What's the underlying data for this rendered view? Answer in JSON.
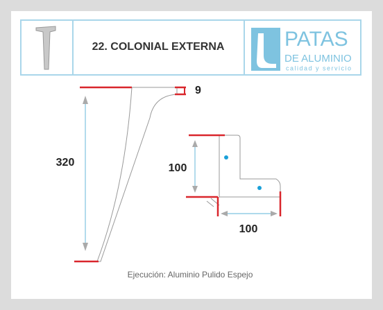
{
  "header": {
    "title": "22. COLONIAL EXTERNA",
    "logo": {
      "name": "PATAS",
      "subtitle": "DE ALUMINIO",
      "tagline": "calidad y servicio"
    }
  },
  "dimensions": {
    "top_width": 9,
    "height": 320,
    "bracket_height": 100,
    "bracket_width": 100
  },
  "footer": "Ejecución: Aluminio Pulido Espejo"
}
